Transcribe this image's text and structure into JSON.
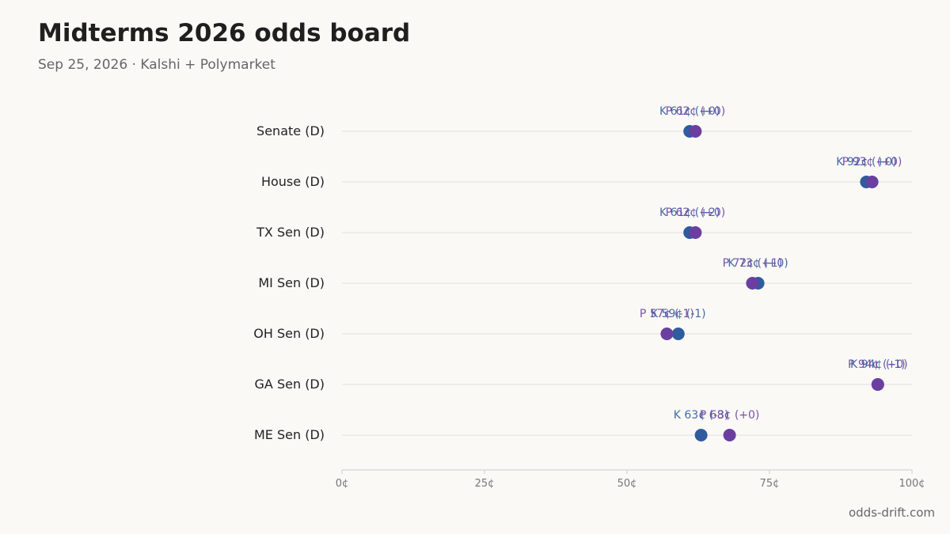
{
  "header": {
    "title": "Midterms 2026 odds board",
    "subtitle": "Sep 25, 2026 · Kalshi + Polymarket"
  },
  "footer": {
    "source": "odds-drift.com"
  },
  "colors": {
    "kalshi": "#2e5c9e",
    "polymarket": "#6b3fa0",
    "grid": "#e2e0dc",
    "axis": "#cccccc"
  },
  "chart_data": {
    "type": "scatter",
    "title": "Midterms 2026 odds board",
    "subtitle": "Sep 25, 2026 · Kalshi + Polymarket",
    "xlabel": "",
    "ylabel": "",
    "xlim": [
      0,
      100
    ],
    "xticks": [
      0,
      25,
      50,
      75,
      100
    ],
    "xtick_labels": [
      "0¢",
      "25¢",
      "50¢",
      "75¢",
      "100¢"
    ],
    "grid": true,
    "categories": [
      "Senate (D)",
      "House (D)",
      "TX Sen (D)",
      "MI Sen (D)",
      "OH Sen (D)",
      "GA Sen (D)",
      "ME Sen (D)"
    ],
    "series": [
      {
        "name": "K",
        "values": [
          61,
          92,
          61,
          73,
          59,
          94,
          63
        ],
        "labels": [
          "K 61¢ (+0)",
          "K 92¢ (+0)",
          "K 61¢ (+2)",
          "K 73¢ (+0)",
          "K 59¢ (-1)",
          "K 94¢ (-1)",
          "K 63¢ (-3)"
        ]
      },
      {
        "name": "P",
        "values": [
          62,
          93,
          62,
          72,
          57,
          94,
          68
        ],
        "labels": [
          "P 62¢ (+0)",
          "P 93¢ (+0)",
          "P 62¢ (+0)",
          "P 72¢ (+1)",
          "P 57¢ (-1)",
          "P 94¢ (+0)",
          "P 68¢ (+0)"
        ]
      }
    ]
  }
}
